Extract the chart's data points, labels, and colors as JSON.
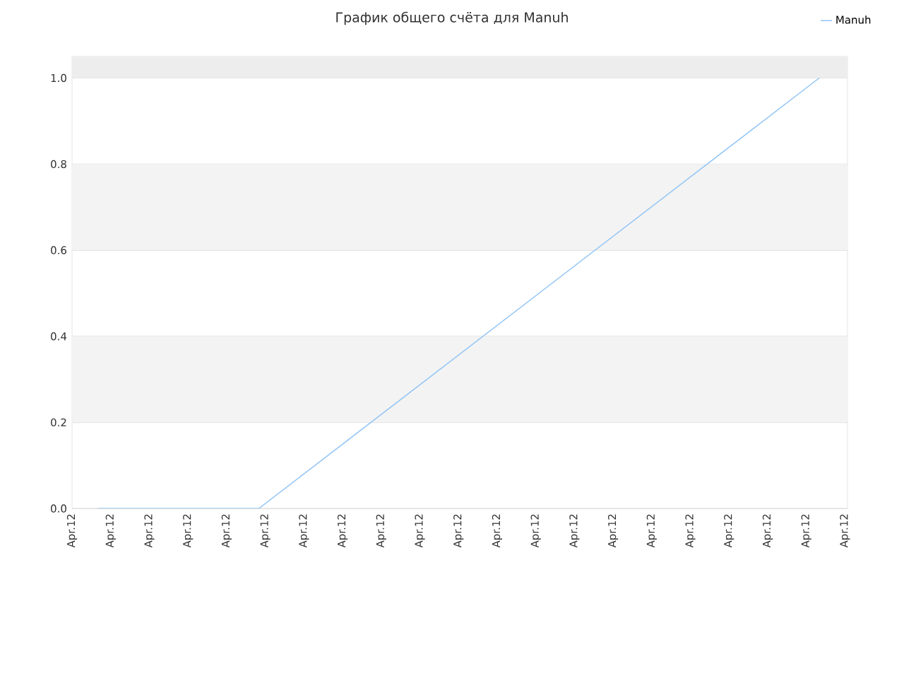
{
  "chart_data": {
    "type": "line",
    "title": "График общего счёта для Manuh",
    "categories": [
      "Apr.12",
      null,
      null,
      null,
      null,
      null,
      "Apr.12",
      null,
      null,
      null,
      null,
      null,
      "Apr.12",
      null,
      null,
      null,
      null,
      null,
      "Apr.12",
      null,
      null,
      null,
      null,
      null,
      "Apr.12",
      null,
      null,
      null,
      null,
      null,
      "Apr.12",
      null,
      null,
      null,
      null,
      null,
      "Apr.12",
      null,
      null,
      null,
      null,
      null,
      "Apr.12",
      null,
      null,
      null,
      null,
      null,
      "Apr.12",
      null,
      null,
      null,
      null,
      null,
      "Apr.12",
      null,
      null,
      null,
      null,
      null,
      "Apr.12",
      null,
      null,
      null,
      null,
      null,
      "Apr.12",
      null,
      null,
      null,
      null,
      null,
      "Apr.12",
      null,
      null,
      null,
      null,
      null,
      "Apr.12",
      null,
      null,
      null,
      null,
      null,
      "Apr.12",
      null,
      null,
      null,
      null,
      null,
      "Apr.12",
      null,
      null,
      null,
      null,
      null,
      "Apr.12",
      null,
      null,
      null,
      null,
      null,
      "Apr.12",
      null,
      null,
      null,
      null,
      null,
      "Apr.12",
      null,
      null,
      null,
      null,
      null,
      "Apr.12",
      null,
      null,
      null,
      null,
      null,
      "Apr.12"
    ],
    "series": [
      {
        "name": "Manuh",
        "color": "#92c5f5",
        "values": [
          null,
          null,
          null,
          null,
          0,
          null,
          null,
          null,
          null,
          null,
          null,
          null,
          null,
          null,
          null,
          null,
          null,
          null,
          null,
          null,
          null,
          null,
          null,
          null,
          null,
          null,
          null,
          null,
          null,
          0,
          null,
          null,
          null,
          null,
          null,
          null,
          null,
          null,
          null,
          null,
          null,
          null,
          null,
          null,
          null,
          null,
          null,
          null,
          null,
          null,
          null,
          null,
          null,
          null,
          null,
          null,
          null,
          null,
          null,
          null,
          null,
          null,
          null,
          null,
          null,
          null,
          null,
          null,
          null,
          null,
          null,
          null,
          null,
          null,
          null,
          null,
          null,
          null,
          null,
          null,
          null,
          null,
          null,
          null,
          null,
          null,
          null,
          null,
          null,
          null,
          null,
          null,
          null,
          null,
          null,
          null,
          null,
          null,
          null,
          null,
          null,
          null,
          null,
          null,
          null,
          null,
          null,
          null,
          null,
          null,
          null,
          null,
          null,
          null,
          null,
          null,
          1,
          null,
          null,
          null,
          null
        ]
      }
    ],
    "ylim": [
      0,
      1.05
    ],
    "yticks": [
      {
        "value": 0,
        "label": "0.0"
      },
      {
        "value": 0.2,
        "label": "0.2"
      },
      {
        "value": 0.4,
        "label": "0.4"
      },
      {
        "value": 0.6,
        "label": "0.6"
      },
      {
        "value": 0.8,
        "label": "0.8"
      },
      {
        "value": 1.0,
        "label": "1.0"
      }
    ],
    "bands": [
      {
        "axis": "y",
        "from": 0.2,
        "to": 0.4,
        "color": "#f3f3f3"
      },
      {
        "axis": "y",
        "from": 0.6,
        "to": 0.8,
        "color": "#f3f3f3"
      },
      {
        "axis": "y",
        "from": 1.0,
        "to": 1.05,
        "color": "#ededed"
      }
    ],
    "grid": "y",
    "legend": "top right",
    "marker": "none",
    "line_style": "solid"
  }
}
